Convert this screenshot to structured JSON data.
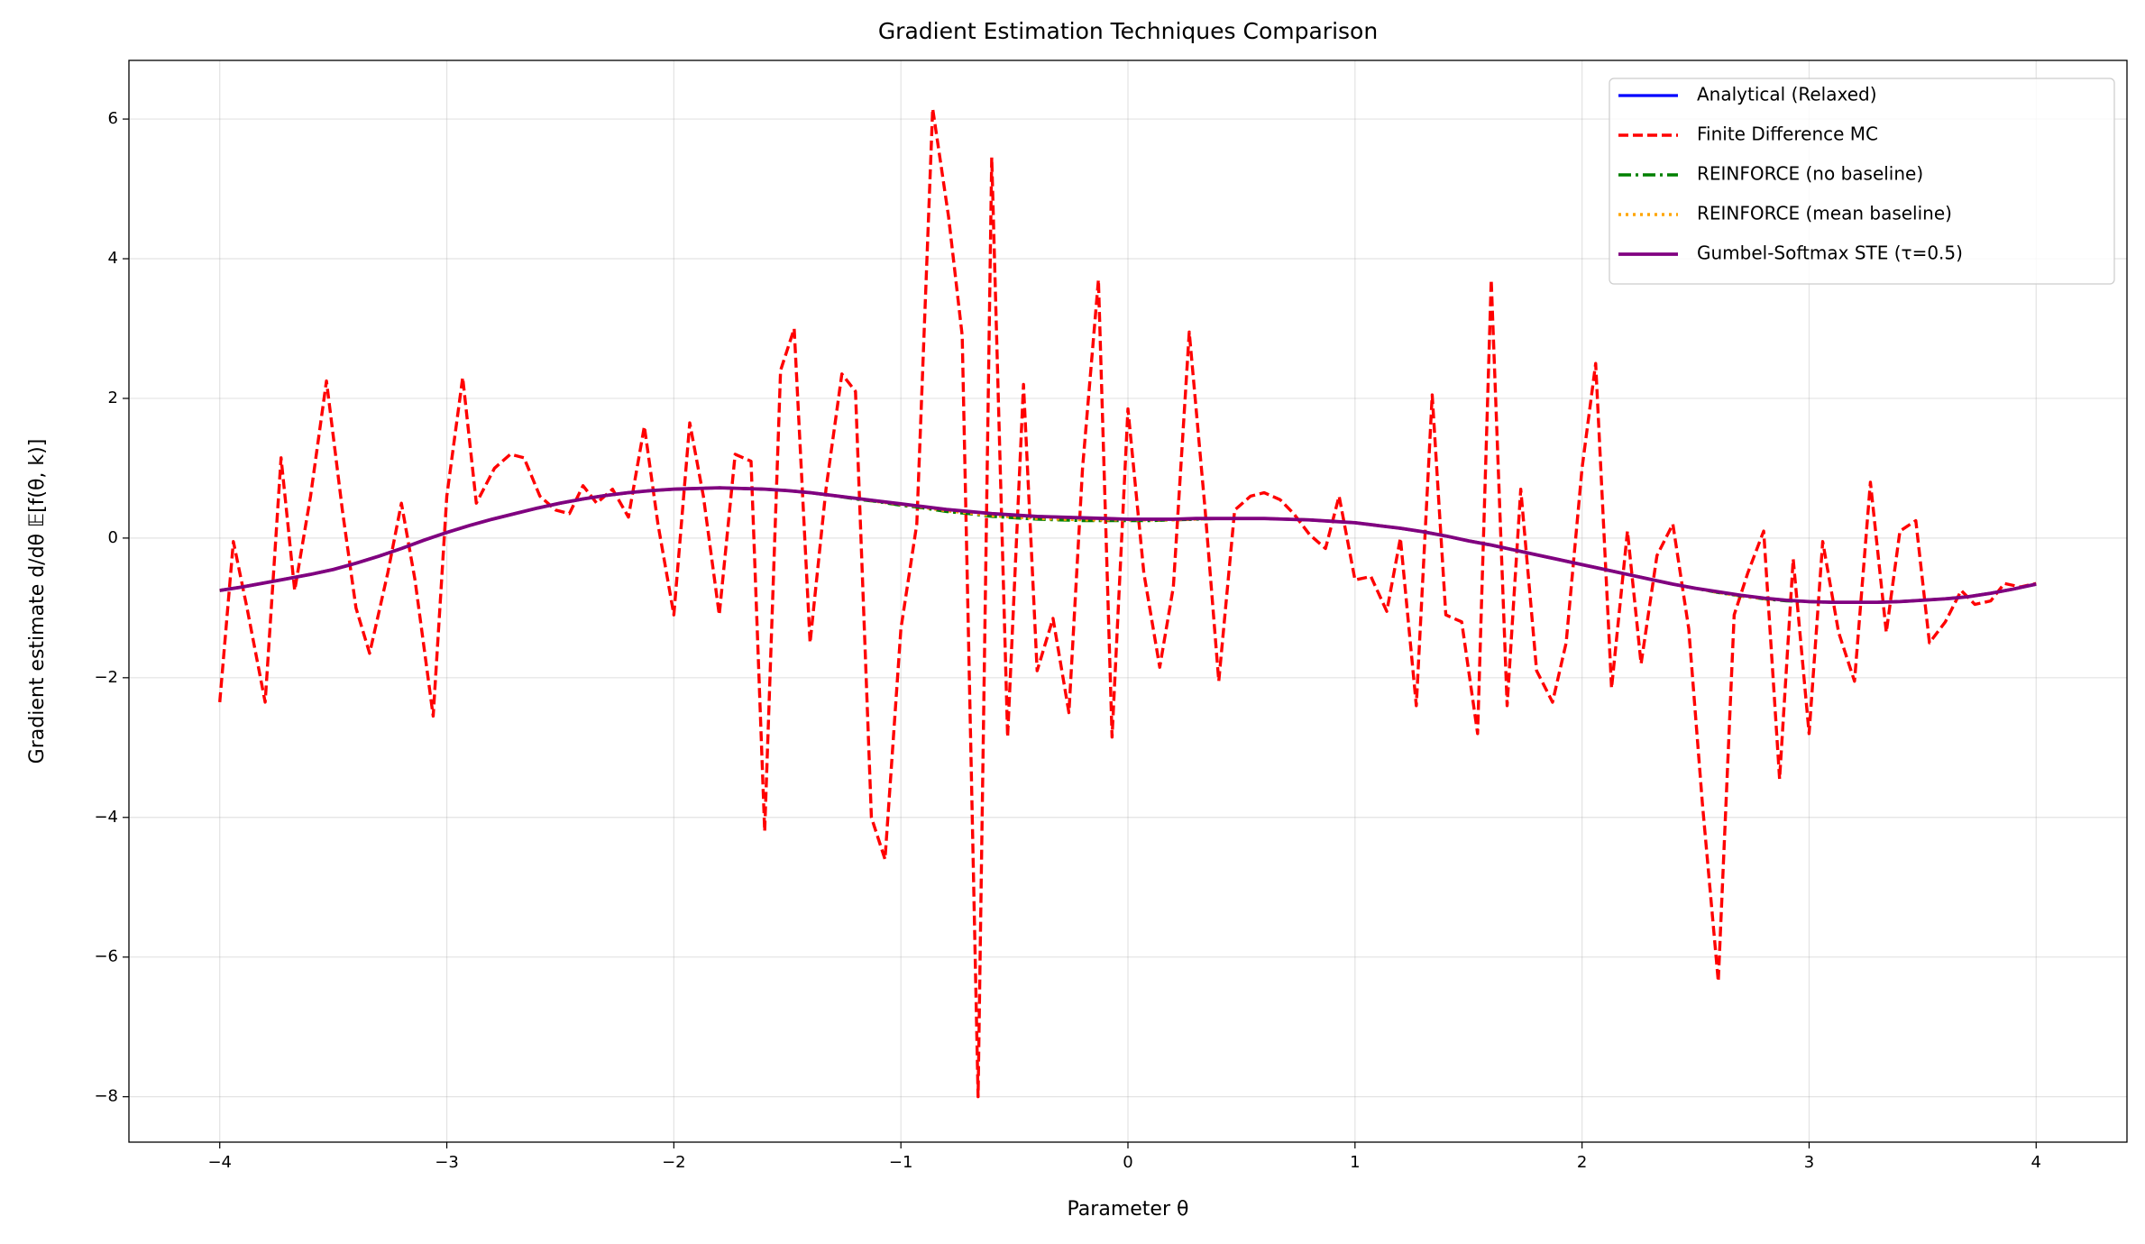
{
  "chart_data": {
    "type": "line",
    "title": "Gradient Estimation Techniques Comparison",
    "xlabel": "Parameter θ",
    "ylabel": "Gradient estimate d/dθ 𝔼[f(θ, k)]",
    "xlim": [
      -4.4,
      4.4
    ],
    "ylim": [
      -8.65,
      6.84
    ],
    "xticks": [
      {
        "value": -4,
        "label": "−4"
      },
      {
        "value": -3,
        "label": "−3"
      },
      {
        "value": -2,
        "label": "−2"
      },
      {
        "value": -1,
        "label": "−1"
      },
      0,
      1,
      2,
      3,
      4
    ],
    "yticks": [
      {
        "value": -8,
        "label": "−8"
      },
      {
        "value": -6,
        "label": "−6"
      },
      {
        "value": -4,
        "label": "−4"
      },
      {
        "value": -2,
        "label": "−2"
      },
      0,
      2,
      4,
      6
    ],
    "grid": true,
    "legend": "upper right",
    "x": [
      -4.0,
      -3.9,
      -3.8,
      -3.7,
      -3.6,
      -3.5,
      -3.4,
      -3.3,
      -3.2,
      -3.1,
      -3.0,
      -2.9,
      -2.8,
      -2.7,
      -2.6,
      -2.5,
      -2.4,
      -2.3,
      -2.2,
      -2.1,
      -2.0,
      -1.9,
      -1.8,
      -1.7,
      -1.6,
      -1.5,
      -1.4,
      -1.3,
      -1.2,
      -1.1,
      -1.0,
      -0.9,
      -0.8,
      -0.7,
      -0.6,
      -0.5,
      -0.4,
      -0.3,
      -0.2,
      -0.1,
      0.0,
      0.1,
      0.2,
      0.3,
      0.4,
      0.5,
      0.6,
      0.7,
      0.8,
      0.9,
      1.0,
      1.1,
      1.2,
      1.3,
      1.4,
      1.5,
      1.6,
      1.7,
      1.8,
      1.9,
      2.0,
      2.1,
      2.2,
      2.3,
      2.4,
      2.5,
      2.6,
      2.7,
      2.8,
      2.9,
      3.0,
      3.1,
      3.2,
      3.3,
      3.4,
      3.5,
      3.6,
      3.7,
      3.8,
      3.9,
      4.0
    ],
    "series": [
      {
        "name": "Analytical (Relaxed)",
        "color": "#0000ff",
        "style": "solid",
        "values": [
          -0.75,
          -0.7,
          -0.64,
          -0.58,
          -0.52,
          -0.45,
          -0.36,
          -0.26,
          -0.15,
          -0.03,
          0.08,
          0.18,
          0.27,
          0.35,
          0.43,
          0.5,
          0.56,
          0.61,
          0.65,
          0.68,
          0.7,
          0.71,
          0.72,
          0.71,
          0.7,
          0.68,
          0.65,
          0.61,
          0.57,
          0.53,
          0.49,
          0.45,
          0.41,
          0.38,
          0.35,
          0.33,
          0.31,
          0.3,
          0.29,
          0.28,
          0.27,
          0.27,
          0.27,
          0.28,
          0.28,
          0.28,
          0.28,
          0.27,
          0.26,
          0.24,
          0.22,
          0.18,
          0.14,
          0.09,
          0.03,
          -0.04,
          -0.1,
          -0.17,
          -0.24,
          -0.31,
          -0.38,
          -0.45,
          -0.52,
          -0.59,
          -0.66,
          -0.72,
          -0.77,
          -0.82,
          -0.86,
          -0.89,
          -0.91,
          -0.92,
          -0.92,
          -0.92,
          -0.91,
          -0.89,
          -0.87,
          -0.84,
          -0.79,
          -0.73,
          -0.66
        ]
      },
      {
        "name": "Finite Difference MC",
        "color": "#ff0000",
        "style": "dashed",
        "x": [
          -4.0,
          -3.94,
          -3.88,
          -3.8,
          -3.73,
          -3.67,
          -3.6,
          -3.53,
          -3.46,
          -3.4,
          -3.34,
          -3.26,
          -3.2,
          -3.14,
          -3.06,
          -3.0,
          -2.93,
          -2.87,
          -2.79,
          -2.72,
          -2.66,
          -2.59,
          -2.52,
          -2.46,
          -2.4,
          -2.34,
          -2.27,
          -2.2,
          -2.13,
          -2.07,
          -2.0,
          -1.93,
          -1.87,
          -1.8,
          -1.73,
          -1.66,
          -1.6,
          -1.53,
          -1.47,
          -1.4,
          -1.33,
          -1.26,
          -1.2,
          -1.13,
          -1.07,
          -1.0,
          -0.93,
          -0.86,
          -0.79,
          -0.73,
          -0.66,
          -0.6,
          -0.53,
          -0.46,
          -0.4,
          -0.33,
          -0.26,
          -0.2,
          -0.13,
          -0.07,
          0.0,
          0.07,
          0.14,
          0.2,
          0.27,
          0.34,
          0.4,
          0.47,
          0.54,
          0.6,
          0.67,
          0.73,
          0.8,
          0.87,
          0.93,
          1.0,
          1.07,
          1.14,
          1.2,
          1.27,
          1.34,
          1.4,
          1.47,
          1.54,
          1.6,
          1.67,
          1.73,
          1.8,
          1.87,
          1.93,
          2.0,
          2.06,
          2.13,
          2.2,
          2.26,
          2.33,
          2.4,
          2.47,
          2.53,
          2.6,
          2.67,
          2.73,
          2.8,
          2.87,
          2.93,
          3.0,
          3.06,
          3.13,
          3.2,
          3.27,
          3.34,
          3.4,
          3.47,
          3.53,
          3.6,
          3.67,
          3.73,
          3.8,
          3.86,
          3.93,
          4.0
        ],
        "values": [
          -2.35,
          -0.05,
          -1.0,
          -2.35,
          1.15,
          -0.75,
          0.6,
          2.25,
          0.4,
          -1.0,
          -1.65,
          -0.5,
          0.5,
          -0.6,
          -2.55,
          0.6,
          2.3,
          0.5,
          1.0,
          1.2,
          1.15,
          0.6,
          0.4,
          0.35,
          0.75,
          0.5,
          0.7,
          0.3,
          1.6,
          0.2,
          -1.1,
          1.65,
          0.6,
          -1.1,
          1.2,
          1.1,
          -4.2,
          2.4,
          3.0,
          -1.5,
          0.7,
          2.35,
          2.1,
          -4.0,
          -4.6,
          -1.3,
          0.2,
          6.15,
          4.6,
          2.9,
          -8.0,
          5.45,
          -2.85,
          2.2,
          -1.9,
          -1.15,
          -2.5,
          1.0,
          3.7,
          -2.85,
          1.85,
          -0.5,
          -1.85,
          -0.7,
          2.95,
          0.4,
          -2.05,
          0.4,
          0.6,
          0.65,
          0.55,
          0.35,
          0.05,
          -0.15,
          0.6,
          -0.6,
          -0.55,
          -1.05,
          0.0,
          -2.4,
          2.05,
          -1.1,
          -1.2,
          -2.8,
          3.7,
          -2.4,
          0.7,
          -1.9,
          -2.35,
          -1.5,
          1.0,
          2.5,
          -2.15,
          0.1,
          -1.8,
          -0.25,
          0.2,
          -1.3,
          -3.8,
          -6.35,
          -1.1,
          -0.5,
          0.1,
          -3.45,
          -0.3,
          -2.8,
          -0.05,
          -1.35,
          -2.05,
          0.8,
          -1.35,
          0.1,
          0.25,
          -1.5,
          -1.2,
          -0.75,
          -0.95,
          -0.9,
          -0.65,
          -0.7,
          -0.65
        ]
      },
      {
        "name": "REINFORCE (no baseline)",
        "color": "#008000",
        "style": "dashdot",
        "values": [
          -0.75,
          -0.7,
          -0.64,
          -0.58,
          -0.52,
          -0.45,
          -0.36,
          -0.26,
          -0.15,
          -0.03,
          0.08,
          0.18,
          0.27,
          0.35,
          0.43,
          0.5,
          0.56,
          0.61,
          0.65,
          0.68,
          0.7,
          0.71,
          0.72,
          0.71,
          0.7,
          0.68,
          0.65,
          0.61,
          0.56,
          0.52,
          0.47,
          0.43,
          0.38,
          0.35,
          0.31,
          0.29,
          0.27,
          0.26,
          0.25,
          0.25,
          0.25,
          0.25,
          0.26,
          0.27,
          0.28,
          0.28,
          0.28,
          0.27,
          0.26,
          0.24,
          0.22,
          0.18,
          0.14,
          0.09,
          0.03,
          -0.04,
          -0.1,
          -0.17,
          -0.24,
          -0.31,
          -0.38,
          -0.45,
          -0.52,
          -0.59,
          -0.66,
          -0.72,
          -0.78,
          -0.83,
          -0.87,
          -0.9,
          -0.91,
          -0.92,
          -0.92,
          -0.92,
          -0.91,
          -0.89,
          -0.87,
          -0.84,
          -0.79,
          -0.73,
          -0.66
        ]
      },
      {
        "name": "REINFORCE (mean baseline)",
        "color": "#ffa500",
        "style": "dotted",
        "values": [
          -0.75,
          -0.7,
          -0.64,
          -0.58,
          -0.52,
          -0.45,
          -0.36,
          -0.26,
          -0.15,
          -0.03,
          0.08,
          0.18,
          0.27,
          0.35,
          0.43,
          0.5,
          0.56,
          0.61,
          0.65,
          0.68,
          0.7,
          0.71,
          0.72,
          0.71,
          0.7,
          0.68,
          0.65,
          0.61,
          0.57,
          0.52,
          0.48,
          0.44,
          0.39,
          0.36,
          0.32,
          0.3,
          0.28,
          0.27,
          0.26,
          0.26,
          0.26,
          0.26,
          0.26,
          0.27,
          0.28,
          0.28,
          0.28,
          0.27,
          0.26,
          0.24,
          0.22,
          0.18,
          0.14,
          0.09,
          0.03,
          -0.04,
          -0.1,
          -0.17,
          -0.24,
          -0.31,
          -0.38,
          -0.45,
          -0.52,
          -0.59,
          -0.66,
          -0.72,
          -0.78,
          -0.83,
          -0.87,
          -0.89,
          -0.91,
          -0.92,
          -0.92,
          -0.92,
          -0.91,
          -0.89,
          -0.87,
          -0.84,
          -0.79,
          -0.73,
          -0.66
        ]
      },
      {
        "name": "Gumbel-Softmax STE (τ=0.5)",
        "color": "#800080",
        "style": "solid",
        "values": [
          -0.75,
          -0.7,
          -0.64,
          -0.58,
          -0.52,
          -0.45,
          -0.36,
          -0.26,
          -0.15,
          -0.03,
          0.08,
          0.18,
          0.27,
          0.35,
          0.43,
          0.5,
          0.56,
          0.61,
          0.65,
          0.68,
          0.7,
          0.71,
          0.72,
          0.71,
          0.7,
          0.68,
          0.65,
          0.61,
          0.57,
          0.53,
          0.49,
          0.45,
          0.41,
          0.38,
          0.35,
          0.33,
          0.31,
          0.3,
          0.29,
          0.28,
          0.27,
          0.27,
          0.27,
          0.28,
          0.28,
          0.28,
          0.28,
          0.27,
          0.26,
          0.24,
          0.22,
          0.18,
          0.14,
          0.09,
          0.03,
          -0.04,
          -0.1,
          -0.17,
          -0.24,
          -0.31,
          -0.38,
          -0.45,
          -0.52,
          -0.59,
          -0.66,
          -0.72,
          -0.77,
          -0.82,
          -0.86,
          -0.89,
          -0.91,
          -0.92,
          -0.92,
          -0.92,
          -0.91,
          -0.89,
          -0.87,
          -0.84,
          -0.79,
          -0.73,
          -0.66
        ]
      }
    ]
  }
}
